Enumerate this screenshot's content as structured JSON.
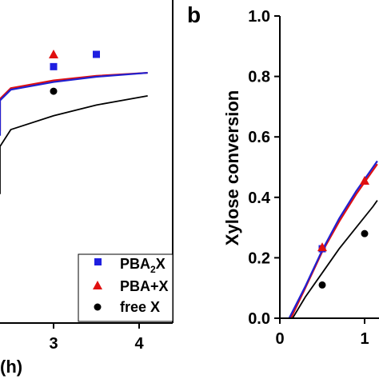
{
  "chart_data": [
    {
      "panel_label": "",
      "type": "scatter",
      "x_ticks": [
        "3",
        "4"
      ],
      "xlim": [
        0.9,
        4.5
      ],
      "ylim": [
        0,
        1.0
      ],
      "xlabel_fragment": "(h)",
      "legend": {
        "placement": "bottom-right",
        "entries": [
          {
            "label_main": "PBA",
            "label_sub": "2",
            "label_tail": "X",
            "marker": "square",
            "color": "#1f1fe0"
          },
          {
            "label_main": "PBA+X",
            "label_sub": "",
            "label_tail": "",
            "marker": "triangle",
            "color": "#e01010"
          },
          {
            "label_main": "free X",
            "label_sub": "",
            "label_tail": "",
            "marker": "circle",
            "color": "#000000"
          }
        ]
      },
      "series": [
        {
          "marker": "square",
          "color": "#1f1fe0",
          "points": [
            [
              3.0,
              0.835
            ],
            [
              3.5,
              0.875
            ]
          ]
        },
        {
          "marker": "triangle",
          "color": "#e01010",
          "points": [
            [
              3.0,
              0.875
            ]
          ]
        },
        {
          "marker": "circle",
          "color": "#000000",
          "points": [
            [
              3.0,
              0.755
            ]
          ]
        }
      ],
      "curves": [
        {
          "color": "#e01010",
          "width": 2.2,
          "points": [
            [
              1.0,
              0.625
            ],
            [
              1.5,
              0.685
            ],
            [
              2.0,
              0.73
            ],
            [
              2.5,
              0.765
            ],
            [
              3.0,
              0.79
            ],
            [
              3.5,
              0.805
            ],
            [
              4.1,
              0.815
            ]
          ]
        },
        {
          "color": "#2020d0",
          "width": 2.2,
          "points": [
            [
              1.0,
              0.61
            ],
            [
              1.5,
              0.675
            ],
            [
              2.0,
              0.725
            ],
            [
              2.5,
              0.76
            ],
            [
              3.0,
              0.785
            ],
            [
              3.5,
              0.802
            ],
            [
              4.1,
              0.815
            ]
          ]
        },
        {
          "color": "#000000",
          "width": 1.8,
          "points": [
            [
              1.0,
              0.42
            ],
            [
              1.5,
              0.505
            ],
            [
              2.0,
              0.575
            ],
            [
              2.5,
              0.63
            ],
            [
              3.0,
              0.675
            ],
            [
              3.5,
              0.71
            ],
            [
              4.1,
              0.74
            ]
          ]
        }
      ]
    },
    {
      "panel_label": "b",
      "type": "scatter",
      "ylabel": "Xylose conversion",
      "y_ticks": [
        "0.0",
        "0.2",
        "0.4",
        "0.6",
        "0.8",
        "1.0"
      ],
      "x_ticks": [
        "0",
        "1"
      ],
      "xlim": [
        0,
        1.15
      ],
      "ylim": [
        0,
        1.0
      ],
      "series": [
        {
          "marker": "square",
          "color": "#1f1fe0",
          "points": [
            [
              0.5,
              0.23
            ]
          ]
        },
        {
          "marker": "triangle",
          "color": "#e01010",
          "points": [
            [
              0.5,
              0.235
            ],
            [
              1.0,
              0.455
            ]
          ]
        },
        {
          "marker": "circle",
          "color": "#000000",
          "points": [
            [
              0.5,
              0.11
            ],
            [
              1.0,
              0.28
            ]
          ]
        }
      ],
      "curves": [
        {
          "color": "#e01010",
          "width": 2.2,
          "points": [
            [
              0.13,
              0.0
            ],
            [
              0.3,
              0.1
            ],
            [
              0.5,
              0.22
            ],
            [
              0.7,
              0.32
            ],
            [
              0.9,
              0.41
            ],
            [
              1.1,
              0.49
            ],
            [
              1.15,
              0.51
            ]
          ]
        },
        {
          "color": "#2020d0",
          "width": 2.2,
          "points": [
            [
              0.11,
              0.0
            ],
            [
              0.3,
              0.105
            ],
            [
              0.5,
              0.225
            ],
            [
              0.7,
              0.33
            ],
            [
              0.9,
              0.42
            ],
            [
              1.1,
              0.5
            ],
            [
              1.15,
              0.52
            ]
          ]
        },
        {
          "color": "#000000",
          "width": 1.8,
          "points": [
            [
              0.15,
              0.0
            ],
            [
              0.3,
              0.07
            ],
            [
              0.5,
              0.15
            ],
            [
              0.7,
              0.23
            ],
            [
              0.9,
              0.3
            ],
            [
              1.1,
              0.37
            ],
            [
              1.15,
              0.39
            ]
          ]
        }
      ]
    }
  ]
}
